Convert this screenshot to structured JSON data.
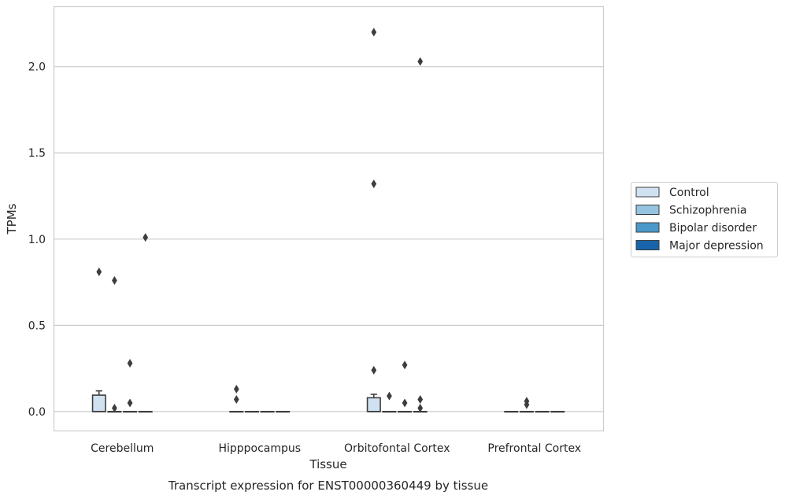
{
  "chart_data": {
    "type": "box",
    "title": "Transcript expression for ENST00000360449 by tissue",
    "xlabel": "Tissue",
    "ylabel": "TPMs",
    "ylim": [
      -0.11,
      2.35
    ],
    "yticks": [
      "0.0",
      "0.5",
      "1.0",
      "1.5",
      "2.0"
    ],
    "ytick_values": [
      0,
      0.5,
      1.0,
      1.5,
      2.0
    ],
    "grid": "horizontal",
    "legend_position": "right",
    "categories": [
      "Cerebellum",
      "Hipppocampus",
      "Orbitofontal Cortex",
      "Prefrontal Cortex"
    ],
    "series": [
      {
        "name": "Control",
        "color": "#d0e1f2",
        "boxes": [
          {
            "q1": 0,
            "median": 0,
            "q3": 0.095,
            "whisker_low": 0,
            "whisker_high": 0.12,
            "outliers": [
              0.81
            ]
          },
          {
            "q1": 0,
            "median": 0,
            "q3": 0,
            "whisker_low": 0,
            "whisker_high": 0,
            "outliers": [
              0.07,
              0.13
            ]
          },
          {
            "q1": 0,
            "median": 0,
            "q3": 0.08,
            "whisker_low": 0,
            "whisker_high": 0.1,
            "outliers": [
              0.24,
              1.32,
              2.2
            ]
          },
          {
            "q1": 0,
            "median": 0,
            "q3": 0,
            "whisker_low": 0,
            "whisker_high": 0,
            "outliers": []
          }
        ]
      },
      {
        "name": "Schizophrenia",
        "color": "#94c4df",
        "boxes": [
          {
            "q1": 0,
            "median": 0,
            "q3": 0,
            "whisker_low": 0,
            "whisker_high": 0,
            "outliers": [
              0.02,
              0.76
            ]
          },
          {
            "q1": 0,
            "median": 0,
            "q3": 0,
            "whisker_low": 0,
            "whisker_high": 0,
            "outliers": []
          },
          {
            "q1": 0,
            "median": 0,
            "q3": 0,
            "whisker_low": 0,
            "whisker_high": 0,
            "outliers": [
              0.09
            ]
          },
          {
            "q1": 0,
            "median": 0,
            "q3": 0,
            "whisker_low": 0,
            "whisker_high": 0,
            "outliers": [
              0.04,
              0.06
            ]
          }
        ]
      },
      {
        "name": "Bipolar disorder",
        "color": "#4a98c9",
        "boxes": [
          {
            "q1": 0,
            "median": 0,
            "q3": 0,
            "whisker_low": 0,
            "whisker_high": 0,
            "outliers": [
              0.05,
              0.28
            ]
          },
          {
            "q1": 0,
            "median": 0,
            "q3": 0,
            "whisker_low": 0,
            "whisker_high": 0,
            "outliers": []
          },
          {
            "q1": 0,
            "median": 0,
            "q3": 0,
            "whisker_low": 0,
            "whisker_high": 0,
            "outliers": [
              0.05,
              0.27
            ]
          },
          {
            "q1": 0,
            "median": 0,
            "q3": 0,
            "whisker_low": 0,
            "whisker_high": 0,
            "outliers": []
          }
        ]
      },
      {
        "name": "Major depression",
        "color": "#1764ab",
        "boxes": [
          {
            "q1": 0,
            "median": 0,
            "q3": 0,
            "whisker_low": 0,
            "whisker_high": 0,
            "outliers": [
              1.01
            ]
          },
          {
            "q1": 0,
            "median": 0,
            "q3": 0,
            "whisker_low": 0,
            "whisker_high": 0,
            "outliers": []
          },
          {
            "q1": 0,
            "median": 0,
            "q3": 0,
            "whisker_low": 0,
            "whisker_high": 0,
            "outliers": [
              0.02,
              0.07,
              2.03
            ]
          },
          {
            "q1": 0,
            "median": 0,
            "q3": 0,
            "whisker_low": 0,
            "whisker_high": 0,
            "outliers": []
          }
        ]
      }
    ]
  }
}
